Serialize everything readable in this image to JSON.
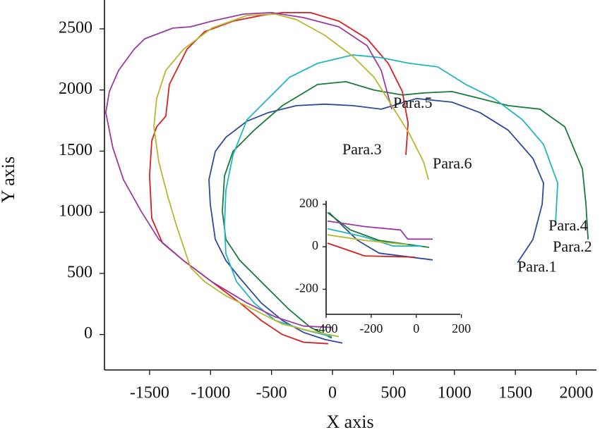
{
  "chart_data": [
    {
      "type": "line",
      "x_label": "X axis",
      "y_label": "Y axis",
      "xlim": [
        -1870,
        2165
      ],
      "ylim": [
        -290,
        2736
      ],
      "xticks": [
        -1500,
        -1000,
        -500,
        0,
        500,
        1000,
        1500,
        2000
      ],
      "yticks": [
        0,
        500,
        1000,
        1500,
        2000,
        2500
      ],
      "series": [
        {
          "name": "Para.1",
          "color": "#2e4a9a",
          "x": [
            81,
            -64,
            -237,
            -411,
            -585,
            -759,
            -874,
            -961,
            -1002,
            -1013,
            -961,
            -874,
            -701,
            -527,
            -295,
            -64,
            168,
            400,
            689,
            979,
            1210,
            1442,
            1644,
            1731,
            1720,
            1644,
            1517
          ],
          "values": [
            -69,
            -40,
            17,
            115,
            259,
            461,
            605,
            778,
            1066,
            1267,
            1498,
            1613,
            1745,
            1815,
            1872,
            1884,
            1872,
            1843,
            1930,
            1901,
            1815,
            1671,
            1440,
            1238,
            1066,
            778,
            588
          ]
        },
        {
          "name": "Para.2",
          "color": "#1a7a3a",
          "x": [
            -6,
            -180,
            -353,
            -527,
            -643,
            -759,
            -874,
            -903,
            -886,
            -816,
            -643,
            -411,
            -122,
            110,
            342,
            573,
            747,
            979,
            1210,
            1442,
            1702,
            1905,
            2050,
            2079,
            2096
          ],
          "values": [
            -29,
            58,
            202,
            374,
            490,
            605,
            778,
            1008,
            1296,
            1498,
            1671,
            1872,
            2045,
            2068,
            1999,
            1959,
            1976,
            1987,
            1930,
            1872,
            1843,
            1699,
            1354,
            1066,
            778
          ]
        },
        {
          "name": "Para.3",
          "color": "#d42020",
          "x": [
            -35,
            -237,
            -411,
            -585,
            -759,
            -990,
            -1222,
            -1395,
            -1482,
            -1500,
            -1482,
            -1442,
            -1367,
            -1338,
            -1193,
            -1048,
            -816,
            -585,
            -411,
            -180,
            52,
            284,
            457,
            573,
            620,
            602
          ],
          "values": [
            -75,
            -63,
            0,
            115,
            259,
            432,
            605,
            749,
            950,
            1296,
            1584,
            1699,
            1786,
            2045,
            2333,
            2477,
            2563,
            2609,
            2633,
            2633,
            2563,
            2419,
            2218,
            1987,
            1728,
            1469
          ]
        },
        {
          "name": "Para.4",
          "color": "#22b5c0",
          "x": [
            -6,
            -237,
            -469,
            -643,
            -787,
            -874,
            -886,
            -874,
            -816,
            -701,
            -527,
            -353,
            -122,
            168,
            400,
            631,
            863,
            1094,
            1326,
            1558,
            1731,
            1847,
            1830
          ],
          "values": [
            -17,
            40,
            115,
            259,
            432,
            662,
            893,
            1181,
            1469,
            1757,
            1930,
            2103,
            2218,
            2287,
            2264,
            2218,
            2189,
            2045,
            1930,
            1757,
            1555,
            1238,
            922
          ]
        },
        {
          "name": "Para.5",
          "color": "#9a3aa0",
          "x": [
            -6,
            -237,
            -469,
            -701,
            -990,
            -1222,
            -1424,
            -1569,
            -1714,
            -1801,
            -1859,
            -1830,
            -1754,
            -1627,
            -1540,
            -1309,
            -1164,
            -990,
            -730,
            -498,
            -237,
            52,
            284,
            400,
            486
          ],
          "values": [
            58,
            69,
            144,
            259,
            432,
            605,
            778,
            1008,
            1267,
            1527,
            1815,
            1987,
            2160,
            2333,
            2419,
            2506,
            2517,
            2563,
            2621,
            2633,
            2592,
            2517,
            2362,
            2160,
            1843
          ]
        },
        {
          "name": "Para.6",
          "color": "#b8b830",
          "x": [
            52,
            -180,
            -411,
            -643,
            -874,
            -1048,
            -1164,
            -1222,
            -1280,
            -1349,
            -1424,
            -1465,
            -1442,
            -1367,
            -1222,
            -990,
            -701,
            -469,
            -295,
            -64,
            168,
            342,
            486,
            631,
            747,
            787
          ],
          "values": [
            -17,
            29,
            86,
            202,
            317,
            432,
            547,
            720,
            893,
            1123,
            1411,
            1699,
            1930,
            2160,
            2333,
            2506,
            2609,
            2621,
            2575,
            2448,
            2275,
            2103,
            1872,
            1642,
            1411,
            1267
          ]
        }
      ]
    },
    {
      "type": "line",
      "xlim": [
        -400,
        195
      ],
      "ylim": [
        -318,
        216
      ],
      "xticks": [
        -400,
        -200,
        0,
        200
      ],
      "yticks": [
        -200,
        0,
        200
      ],
      "series": [
        {
          "color": "#2e4a9a",
          "x": [
            -387,
            -324,
            -260,
            -165,
            73
          ],
          "values": [
            161,
            95,
            30,
            -30,
            -62
          ]
        },
        {
          "color": "#1a7a3a",
          "x": [
            -394,
            -292,
            -165,
            57
          ],
          "values": [
            161,
            79,
            30,
            -3
          ]
        },
        {
          "color": "#d42020",
          "x": [
            -394,
            -229,
            -6
          ],
          "values": [
            17,
            -43,
            -49
          ]
        },
        {
          "color": "#22b5c0",
          "x": [
            -394,
            -229,
            -102,
            25
          ],
          "values": [
            85,
            46,
            3,
            3
          ]
        },
        {
          "color": "#9a3aa0",
          "x": [
            -394,
            -229,
            -70,
            -38,
            73
          ],
          "values": [
            121,
            95,
            79,
            36,
            36
          ]
        },
        {
          "color": "#b8b830",
          "x": [
            -394,
            -229,
            -38
          ],
          "values": [
            56,
            30,
            10
          ]
        }
      ]
    }
  ]
}
